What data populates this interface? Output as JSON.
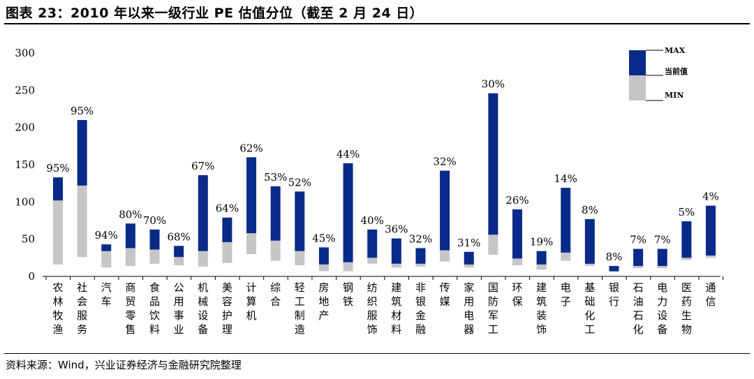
{
  "header": {
    "title": "图表 23：2010 年以来一级行业 PE 估值分位（截至 2 月 24 日）"
  },
  "footer": {
    "source": "资料来源：Wind，兴业证券经济与金融研究院整理"
  },
  "chart_data": {
    "type": "bar",
    "title": "",
    "xlabel": "",
    "ylabel": "",
    "ylim": [
      0,
      300
    ],
    "yticks": [
      0,
      50,
      100,
      150,
      200,
      250,
      300
    ],
    "legend": {
      "items": [
        "MAX",
        "当前值",
        "MIN"
      ],
      "placement": "top-right"
    },
    "colors": {
      "upper": "#0a2a8a",
      "lower": "#c6c6c6"
    },
    "categories": [
      "农林牧渔",
      "社会服务",
      "汽车",
      "商贸零售",
      "食品饮料",
      "公用事业",
      "机械设备",
      "美容护理",
      "计算机",
      "综合",
      "轻工制造",
      "房地产",
      "钢铁",
      "纺织服饰",
      "建筑材料",
      "非银金融",
      "传媒",
      "家用电器",
      "国防军工",
      "环保",
      "建筑装饰",
      "电子",
      "基础化工",
      "银行",
      "石油石化",
      "电力设备",
      "医药生物",
      "通信"
    ],
    "series": [
      {
        "name": "MAX",
        "values": [
          133,
          210,
          43,
          71,
          63,
          41,
          136,
          79,
          160,
          121,
          114,
          39,
          152,
          63,
          51,
          38,
          142,
          33,
          246,
          90,
          34,
          119,
          77,
          14,
          37,
          37,
          74,
          95
        ]
      },
      {
        "name": "当前值",
        "values": [
          102,
          122,
          34,
          38,
          36,
          26,
          34,
          46,
          58,
          48,
          34,
          16,
          19,
          25,
          17,
          17,
          35,
          16,
          56,
          24,
          16,
          32,
          17,
          7,
          14,
          14,
          25,
          28
        ]
      },
      {
        "name": "MIN",
        "values": [
          16,
          26,
          12,
          14,
          17,
          15,
          13,
          18,
          30,
          21,
          15,
          7,
          7,
          17,
          12,
          13,
          20,
          12,
          29,
          15,
          9,
          21,
          14,
          6,
          11,
          11,
          22,
          25
        ]
      }
    ],
    "percentile_labels": [
      "95%",
      "95%",
      "94%",
      "80%",
      "70%",
      "68%",
      "67%",
      "64%",
      "62%",
      "53%",
      "52%",
      "45%",
      "44%",
      "40%",
      "36%",
      "32%",
      "32%",
      "31%",
      "30%",
      "26%",
      "19%",
      "14%",
      "8%",
      "8%",
      "7%",
      "7%",
      "5%",
      "4%"
    ]
  }
}
